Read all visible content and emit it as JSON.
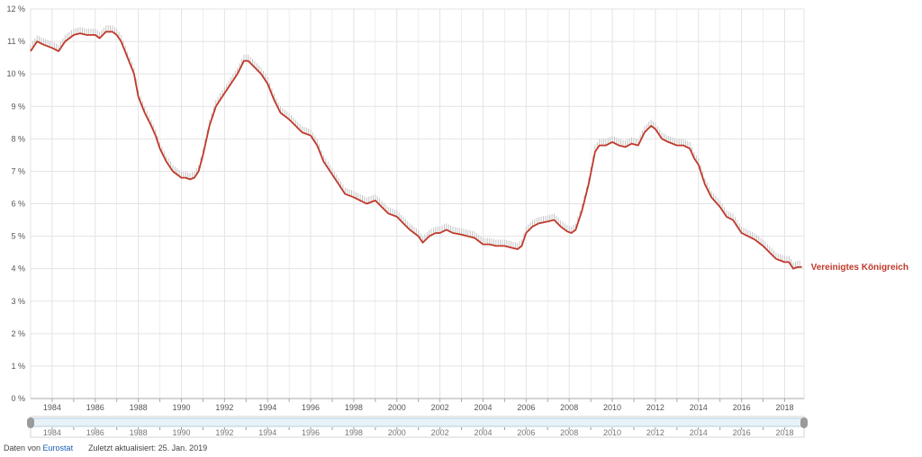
{
  "chart_data": {
    "type": "line",
    "title": "",
    "xlabel": "",
    "ylabel": "",
    "xlim": [
      1983.0,
      2018.9
    ],
    "ylim": [
      0,
      12
    ],
    "grid": true,
    "y_ticks": [
      "0 %",
      "1 %",
      "2 %",
      "3 %",
      "4 %",
      "5 %",
      "6 %",
      "7 %",
      "8 %",
      "9 %",
      "10 %",
      "11 %",
      "12 %"
    ],
    "x_ticks": [
      "1984",
      "1986",
      "1988",
      "1990",
      "1992",
      "1994",
      "1996",
      "1998",
      "2000",
      "2002",
      "2004",
      "2006",
      "2008",
      "2010",
      "2012",
      "2014",
      "2016",
      "2018"
    ],
    "series": [
      {
        "name": "Vereinigtes Königreich",
        "color": "#c0392b",
        "x": [
          1983.0,
          1983.3,
          1983.6,
          1984.0,
          1984.3,
          1984.6,
          1985.0,
          1985.3,
          1985.6,
          1986.0,
          1986.2,
          1986.5,
          1986.8,
          1987.0,
          1987.2,
          1987.5,
          1987.8,
          1988.0,
          1988.3,
          1988.6,
          1988.8,
          1989.0,
          1989.3,
          1989.6,
          1989.8,
          1990.0,
          1990.2,
          1990.4,
          1990.6,
          1990.8,
          1991.0,
          1991.3,
          1991.6,
          1992.0,
          1992.3,
          1992.6,
          1992.9,
          1993.1,
          1993.4,
          1993.7,
          1994.0,
          1994.3,
          1994.6,
          1995.0,
          1995.3,
          1995.6,
          1996.0,
          1996.3,
          1996.6,
          1997.0,
          1997.3,
          1997.6,
          1998.0,
          1998.3,
          1998.6,
          1999.0,
          1999.3,
          1999.6,
          2000.0,
          2000.3,
          2000.6,
          2001.0,
          2001.2,
          2001.5,
          2001.8,
          2002.0,
          2002.3,
          2002.6,
          2003.0,
          2003.3,
          2003.6,
          2004.0,
          2004.3,
          2004.6,
          2005.0,
          2005.3,
          2005.6,
          2005.8,
          2006.0,
          2006.3,
          2006.6,
          2007.0,
          2007.3,
          2007.6,
          2007.9,
          2008.1,
          2008.3,
          2008.6,
          2008.9,
          2009.2,
          2009.4,
          2009.7,
          2010.0,
          2010.3,
          2010.6,
          2010.9,
          2011.2,
          2011.5,
          2011.8,
          2012.0,
          2012.3,
          2012.6,
          2013.0,
          2013.3,
          2013.6,
          2013.8,
          2014.0,
          2014.3,
          2014.6,
          2015.0,
          2015.3,
          2015.6,
          2016.0,
          2016.3,
          2016.6,
          2017.0,
          2017.3,
          2017.6,
          2018.0,
          2018.2,
          2018.4,
          2018.6,
          2018.8
        ],
        "y": [
          10.7,
          11.0,
          10.9,
          10.8,
          10.7,
          11.0,
          11.2,
          11.25,
          11.2,
          11.2,
          11.1,
          11.3,
          11.3,
          11.2,
          11.0,
          10.5,
          10.0,
          9.3,
          8.8,
          8.4,
          8.1,
          7.7,
          7.3,
          7.0,
          6.9,
          6.8,
          6.8,
          6.75,
          6.8,
          7.0,
          7.5,
          8.4,
          9.0,
          9.4,
          9.7,
          10.0,
          10.4,
          10.4,
          10.2,
          10.0,
          9.7,
          9.2,
          8.8,
          8.6,
          8.4,
          8.2,
          8.1,
          7.8,
          7.3,
          6.9,
          6.6,
          6.3,
          6.2,
          6.1,
          6.0,
          6.1,
          5.9,
          5.7,
          5.6,
          5.4,
          5.2,
          5.0,
          4.8,
          5.0,
          5.1,
          5.1,
          5.2,
          5.1,
          5.05,
          5.0,
          4.95,
          4.75,
          4.75,
          4.7,
          4.7,
          4.65,
          4.6,
          4.7,
          5.1,
          5.3,
          5.4,
          5.45,
          5.5,
          5.3,
          5.15,
          5.1,
          5.2,
          5.8,
          6.6,
          7.6,
          7.8,
          7.8,
          7.9,
          7.8,
          7.75,
          7.85,
          7.8,
          8.2,
          8.4,
          8.3,
          8.0,
          7.9,
          7.8,
          7.8,
          7.7,
          7.4,
          7.2,
          6.6,
          6.2,
          5.9,
          5.6,
          5.5,
          5.1,
          5.0,
          4.9,
          4.7,
          4.5,
          4.3,
          4.2,
          4.2,
          4.0,
          4.05,
          4.05
        ]
      }
    ]
  },
  "navigator": {
    "labels": [
      "1984",
      "1986",
      "1988",
      "1990",
      "1992",
      "1994",
      "1996",
      "1998",
      "2000",
      "2002",
      "2004",
      "2006",
      "2008",
      "2010",
      "2012",
      "2014",
      "2016",
      "2018"
    ]
  },
  "footer": {
    "prefix": "Daten von",
    "source": "Eurostat",
    "updated": "Zuletzt aktualisiert: 25. Jan. 2019"
  },
  "colors": {
    "grid": "#e3e3e3",
    "axis": "#aaaaaa",
    "band": "#bfbfbf",
    "navigator_fill": "#e6f1f8",
    "navigator_border": "#b7cfe0",
    "handle": "#9a9a9a"
  }
}
